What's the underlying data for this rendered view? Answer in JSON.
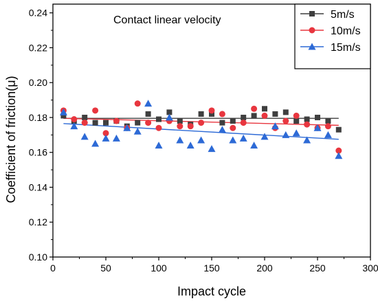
{
  "chart_data": {
    "type": "scatter",
    "title": "",
    "annotation": "Contact linear velocity",
    "xlabel": "Impact cycle",
    "ylabel": "Coefficient of friction(μ)",
    "xlim": [
      0,
      300
    ],
    "ylim": [
      0.1,
      0.245
    ],
    "x_ticks": [
      0,
      50,
      100,
      150,
      200,
      250,
      300
    ],
    "x_tick_labels": [
      "0",
      "50",
      "100",
      "150",
      "200",
      "250",
      "300"
    ],
    "y_ticks": [
      0.1,
      0.12,
      0.14,
      0.16,
      0.18,
      0.2,
      0.22,
      0.24
    ],
    "y_tick_labels": [
      "0.10",
      "0.12",
      "0.14",
      "0.16",
      "0.18",
      "0.20",
      "0.22",
      "0.24"
    ],
    "grid": false,
    "legend_position": "top-right",
    "x": [
      10,
      20,
      30,
      40,
      50,
      60,
      70,
      80,
      90,
      100,
      110,
      120,
      130,
      140,
      150,
      160,
      170,
      180,
      190,
      200,
      210,
      220,
      230,
      240,
      250,
      260,
      270
    ],
    "series": [
      {
        "name": "5m/s",
        "marker": "square",
        "color": "#3f3f3f",
        "values": [
          0.181,
          0.178,
          0.18,
          0.177,
          0.177,
          0.178,
          0.175,
          0.177,
          0.182,
          0.179,
          0.183,
          0.178,
          0.176,
          0.182,
          0.182,
          0.177,
          0.178,
          0.18,
          0.181,
          0.185,
          0.182,
          0.183,
          0.178,
          0.179,
          0.18,
          0.178,
          0.173
        ],
        "fit": [
          0.1795,
          0.1795
        ]
      },
      {
        "name": "10m/s",
        "marker": "circle",
        "color": "#e8363f",
        "values": [
          0.184,
          0.179,
          0.177,
          0.184,
          0.171,
          0.178,
          0.174,
          0.188,
          0.177,
          0.174,
          0.178,
          0.175,
          0.175,
          0.177,
          0.184,
          0.182,
          0.174,
          0.177,
          0.185,
          0.181,
          0.174,
          0.178,
          0.181,
          0.176,
          0.174,
          0.175,
          0.161
        ],
        "fit": [
          0.1795,
          0.1755
        ]
      },
      {
        "name": "15m/s",
        "marker": "triangle",
        "color": "#2d6ad6",
        "values": [
          0.183,
          0.175,
          0.169,
          0.165,
          0.168,
          0.168,
          0.174,
          0.172,
          0.188,
          0.164,
          0.18,
          0.167,
          0.164,
          0.167,
          0.162,
          0.173,
          0.167,
          0.168,
          0.164,
          0.169,
          0.175,
          0.17,
          0.171,
          0.167,
          0.174,
          0.17,
          0.158
        ],
        "fit": [
          0.1765,
          0.1675
        ]
      }
    ]
  }
}
